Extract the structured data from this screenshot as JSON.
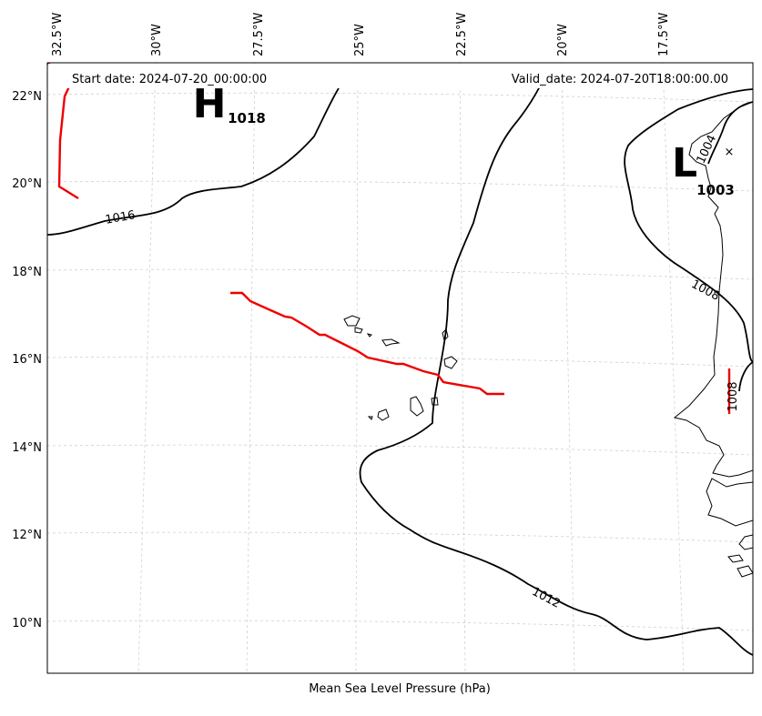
{
  "map": {
    "start_date_text": "Start date: 2024-07-20_00:00:00",
    "valid_date_text": "Valid_date: 2024-07-20T18:00:00.00",
    "xlabel": "Mean Sea Level Pressure (hPa)",
    "lon_ticks": [
      "32.5°W",
      "30°W",
      "27.5°W",
      "25°W",
      "22.5°W",
      "20°W",
      "17.5°W"
    ],
    "lat_ticks": [
      "22°N",
      "20°N",
      "18°N",
      "16°N",
      "14°N",
      "12°N",
      "10°N"
    ],
    "contour_labels": [
      "1016",
      "1012",
      "1008",
      "1008",
      "1004"
    ],
    "high": {
      "letter": "H",
      "value": "1018"
    },
    "low": {
      "letter": "L",
      "value": "1003"
    },
    "marker": "×"
  },
  "colors": {
    "isobar": "#000000",
    "trough": "#ee0000",
    "grid": "#d0d0d0",
    "coast": "#000000"
  }
}
